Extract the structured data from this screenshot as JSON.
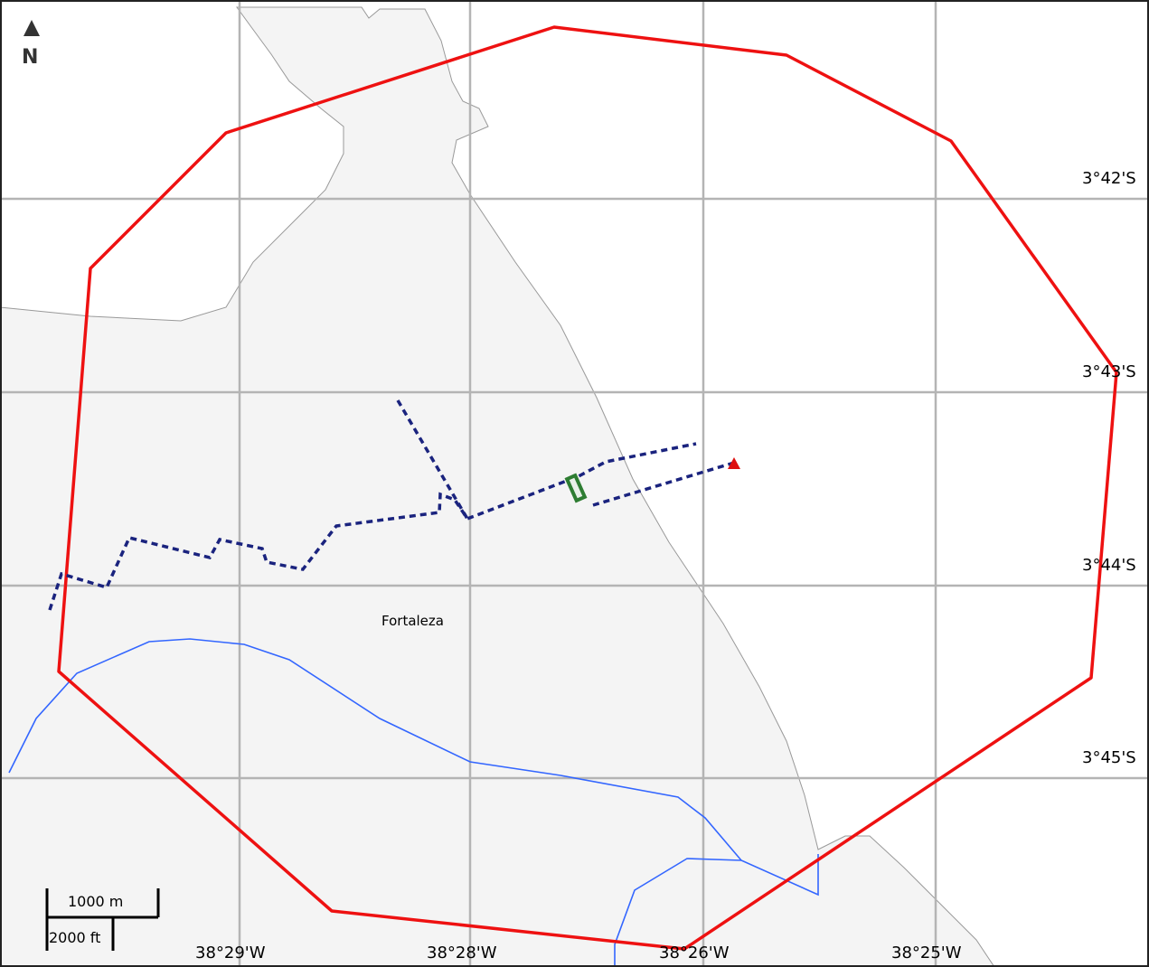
{
  "map": {
    "north": {
      "letter": "N"
    },
    "place_label": "Fortaleza",
    "lat_labels": [
      "3°42'S",
      "3°43'S",
      "3°44'S",
      "3°45'S"
    ],
    "lon_labels": [
      "38°29'W",
      "38°28'W",
      "38°26'W",
      "38°25'W"
    ],
    "scale": {
      "metric": "1000 m",
      "imperial": "2000 ft"
    },
    "colors": {
      "land": "#f4f4f4",
      "sea": "#ffffff",
      "grid": "#b4b4b4",
      "boundary": "#ee1111",
      "river": "#3366ff",
      "route": "#1a237e",
      "marker": "#2e7d32",
      "point": "#dd1111"
    }
  }
}
